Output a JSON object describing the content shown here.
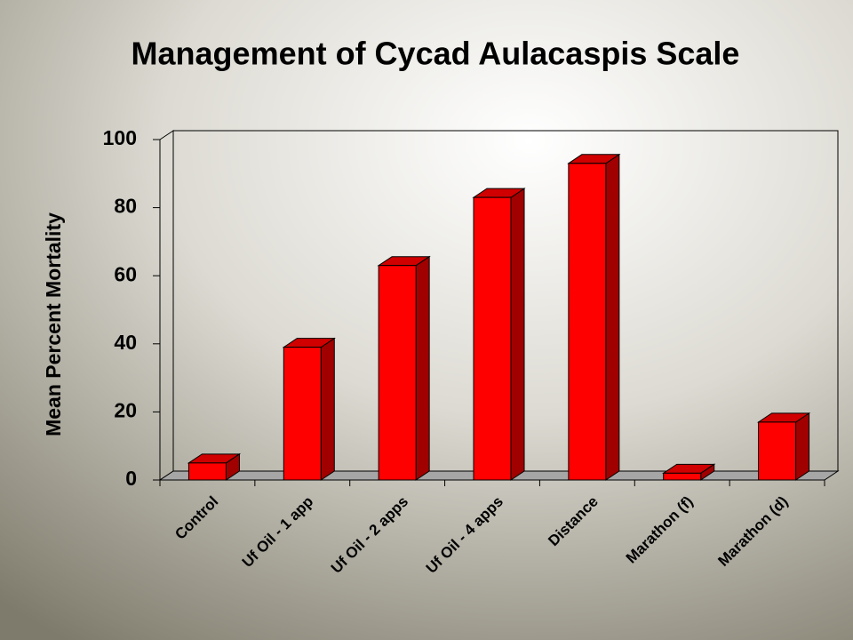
{
  "chart_data": {
    "type": "bar3d",
    "title": "Management of Cycad Aulacaspis Scale",
    "y_label": "Mean Percent Mortality",
    "categories": [
      "Control",
      "Uf Oil - 1 app",
      "Uf Oil -  2 apps",
      "Uf Oil - 4 apps",
      "Distance",
      "Marathon (f)",
      "Marathon (d)"
    ],
    "values": [
      5,
      39,
      63,
      83,
      93,
      2,
      17
    ],
    "color": "#ff0000",
    "ylim": [
      0,
      100
    ],
    "yticks": [
      0,
      20,
      40,
      60,
      80,
      100
    ]
  }
}
